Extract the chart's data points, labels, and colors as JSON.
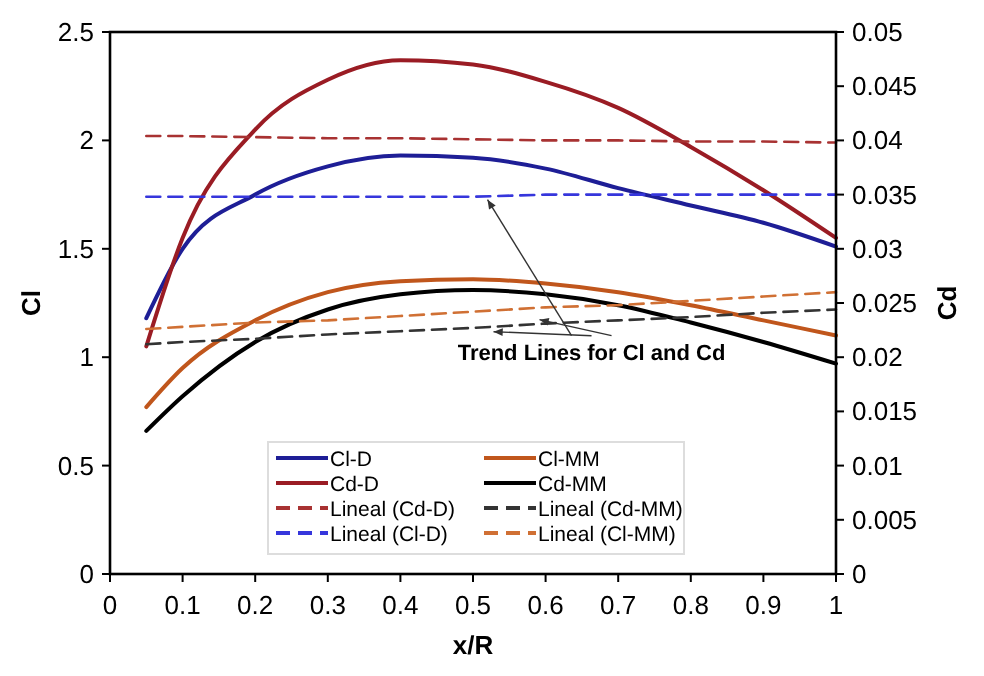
{
  "chart_data": {
    "type": "line",
    "xlabel": "x/R",
    "ylabel": "Cl",
    "y2label": "Cd",
    "xlim": [
      0,
      1
    ],
    "xticks": [
      0,
      0.1,
      0.2,
      0.3,
      0.4,
      0.5,
      0.6,
      0.7,
      0.8,
      0.9,
      1
    ],
    "ylim": [
      0,
      2.5
    ],
    "yticks": [
      0,
      0.5,
      1,
      1.5,
      2,
      2.5
    ],
    "y2lim": [
      0,
      0.05
    ],
    "y2ticks": [
      0,
      0.005,
      0.01,
      0.015,
      0.02,
      0.025,
      0.03,
      0.035,
      0.04,
      0.045,
      0.05
    ],
    "x": [
      0.05,
      0.1,
      0.2,
      0.3,
      0.4,
      0.5,
      0.6,
      0.7,
      0.8,
      0.9,
      1
    ],
    "grid": false,
    "legend": "bottom",
    "marker": "none",
    "annotations": [
      {
        "text": "Trend Lines for Cl and Cd",
        "x": 0.52,
        "y": 1.745
      }
    ],
    "series": [
      {
        "name": "Cl-D",
        "color": "#1e1e96",
        "line_style": "solid",
        "values": [
          1.18,
          1.5,
          1.75,
          1.88,
          1.93,
          1.92,
          1.87,
          1.78,
          1.7,
          1.62,
          1.51
        ]
      },
      {
        "name": "Cl-MM",
        "color": "#c0561c",
        "line_style": "solid",
        "values": [
          0.77,
          0.95,
          1.17,
          1.3,
          1.35,
          1.36,
          1.34,
          1.3,
          1.24,
          1.17,
          1.1
        ]
      },
      {
        "name": "Cd-D",
        "color": "#9a1c24",
        "line_style": "solid",
        "axis": "y2",
        "values": [
          0.021,
          0.031,
          0.041,
          0.0456,
          0.0474,
          0.047,
          0.0454,
          0.043,
          0.0394,
          0.0354,
          0.031
        ]
      },
      {
        "name": "Cd-MM",
        "color": "#000000",
        "line_style": "solid",
        "axis": "y2",
        "values": [
          0.0132,
          0.0164,
          0.0214,
          0.0244,
          0.0258,
          0.0262,
          0.0258,
          0.0248,
          0.0232,
          0.0214,
          0.0194
        ]
      },
      {
        "name": "Lineal (Cd-D)",
        "color": "#a83232",
        "line_style": "dashed",
        "axis": "y2",
        "values": [
          0.0404,
          0.0404,
          0.0403,
          0.0402,
          0.0402,
          0.0401,
          0.04,
          0.04,
          0.0399,
          0.0399,
          0.0398
        ]
      },
      {
        "name": "Lineal (Cd-MM)",
        "color": "#333333",
        "line_style": "dashed",
        "axis": "y2",
        "values": [
          0.0212,
          0.0214,
          0.0217,
          0.0221,
          0.0224,
          0.0227,
          0.0231,
          0.0234,
          0.0237,
          0.0241,
          0.0244
        ]
      },
      {
        "name": "Lineal (Cl-D)",
        "color": "#3636dc",
        "line_style": "dashed",
        "values": [
          1.74,
          1.74,
          1.74,
          1.74,
          1.74,
          1.74,
          1.75,
          1.75,
          1.75,
          1.75,
          1.75
        ]
      },
      {
        "name": "Lineal (Cl-MM)",
        "color": "#d07034",
        "line_style": "dashed",
        "values": [
          1.13,
          1.14,
          1.16,
          1.17,
          1.19,
          1.21,
          1.23,
          1.24,
          1.26,
          1.28,
          1.3
        ]
      }
    ]
  }
}
